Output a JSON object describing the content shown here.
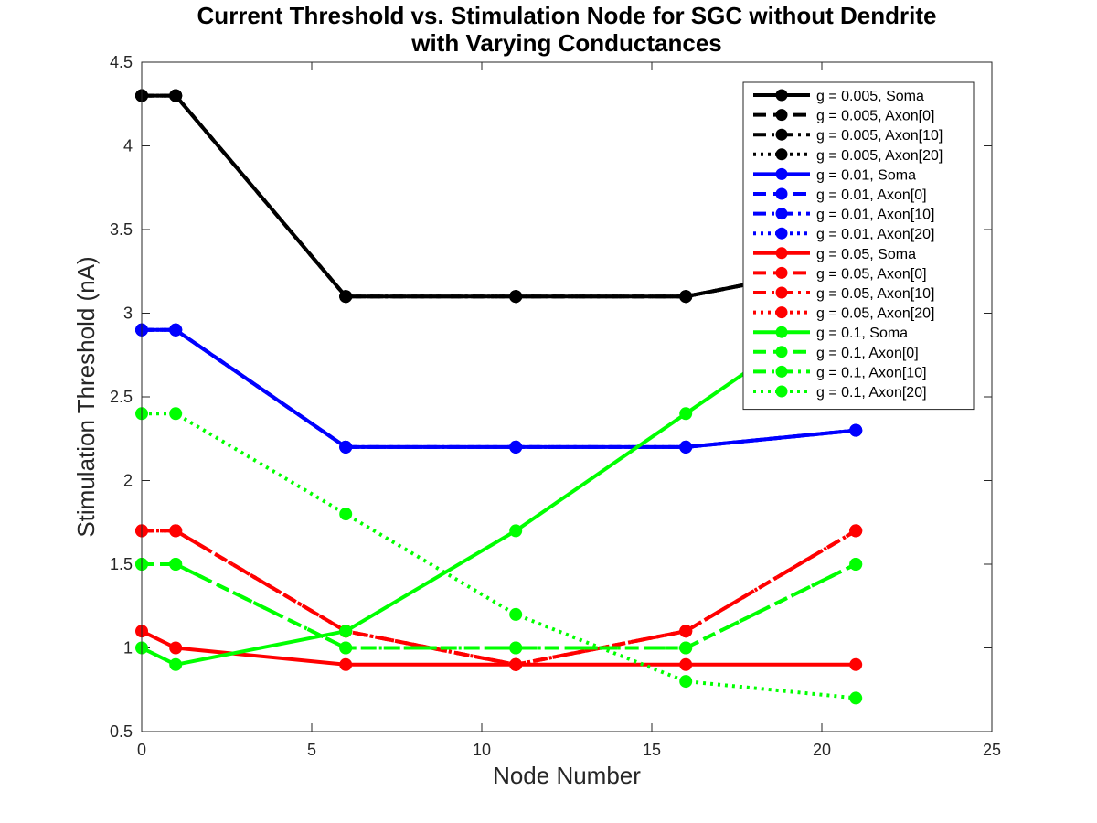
{
  "chart_data": {
    "type": "line",
    "title": [
      "Current Threshold vs. Stimulation Node for SGC without Dendrite",
      "with Varying Conductances"
    ],
    "xlabel": "Node Number",
    "ylabel": "Stimulation Threshold (nA)",
    "xlim": [
      0,
      25
    ],
    "ylim": [
      0.5,
      4.5
    ],
    "xticks": [
      0,
      5,
      10,
      15,
      20,
      25
    ],
    "xtick_labels": [
      "0",
      "5",
      "10",
      "15",
      "20",
      "25"
    ],
    "yticks": [
      0.5,
      1,
      1.5,
      2,
      2.5,
      3,
      3.5,
      4,
      4.5
    ],
    "ytick_labels": [
      "0.5",
      "1",
      "1.5",
      "2",
      "2.5",
      "3",
      "3.5",
      "4",
      "4.5"
    ],
    "grid": false,
    "legend_position": "top-right",
    "x": [
      0,
      1,
      6,
      11,
      16,
      21
    ],
    "series": [
      {
        "name": "g = 0.005, Soma",
        "color": "#000000",
        "style": "solid",
        "values": [
          4.3,
          4.3,
          3.1,
          3.1,
          3.1,
          3.3
        ]
      },
      {
        "name": "g = 0.005, Axon[0]",
        "color": "#000000",
        "style": "dashed",
        "values": [
          4.3,
          4.3,
          3.1,
          3.1,
          3.1,
          3.3
        ]
      },
      {
        "name": "g = 0.005, Axon[10]",
        "color": "#000000",
        "style": "dashdot",
        "values": [
          4.3,
          4.3,
          3.1,
          3.1,
          3.1,
          3.3
        ]
      },
      {
        "name": "g = 0.005, Axon[20]",
        "color": "#000000",
        "style": "dotted",
        "values": [
          4.3,
          4.3,
          3.1,
          3.1,
          3.1,
          3.3
        ]
      },
      {
        "name": "g = 0.01, Soma",
        "color": "#0000ff",
        "style": "solid",
        "values": [
          2.9,
          2.9,
          2.2,
          2.2,
          2.2,
          2.3
        ]
      },
      {
        "name": "g = 0.01, Axon[0]",
        "color": "#0000ff",
        "style": "dashed",
        "values": [
          2.9,
          2.9,
          2.2,
          2.2,
          2.2,
          2.3
        ]
      },
      {
        "name": "g = 0.01, Axon[10]",
        "color": "#0000ff",
        "style": "dashdot",
        "values": [
          2.9,
          2.9,
          2.2,
          2.2,
          2.2,
          2.3
        ]
      },
      {
        "name": "g = 0.01, Axon[20]",
        "color": "#0000ff",
        "style": "dotted",
        "values": [
          2.9,
          2.9,
          2.2,
          2.2,
          2.2,
          2.3
        ]
      },
      {
        "name": "g = 0.05, Soma",
        "color": "#ff0000",
        "style": "solid",
        "values": [
          1.1,
          1.0,
          0.9,
          0.9,
          0.9,
          0.9
        ]
      },
      {
        "name": "g = 0.05, Axon[0]",
        "color": "#ff0000",
        "style": "dashed",
        "values": [
          1.7,
          1.7,
          1.1,
          0.9,
          1.1,
          1.7
        ]
      },
      {
        "name": "g = 0.05, Axon[10]",
        "color": "#ff0000",
        "style": "dashdot",
        "values": [
          1.7,
          1.7,
          1.1,
          0.9,
          1.1,
          1.7
        ]
      },
      {
        "name": "g = 0.05, Axon[20]",
        "color": "#ff0000",
        "style": "dotted",
        "values": [
          1.7,
          1.7,
          1.1,
          0.9,
          1.1,
          1.7
        ]
      },
      {
        "name": "g = 0.1, Soma",
        "color": "#00ff00",
        "style": "solid",
        "values": [
          1.0,
          0.9,
          1.1,
          1.7,
          2.4,
          3.1
        ]
      },
      {
        "name": "g = 0.1, Axon[0]",
        "color": "#00ff00",
        "style": "dashed",
        "values": [
          1.5,
          1.5,
          1.0,
          1.0,
          1.0,
          1.5
        ]
      },
      {
        "name": "g = 0.1, Axon[10]",
        "color": "#00ff00",
        "style": "dashdot",
        "values": [
          1.5,
          1.5,
          1.0,
          1.0,
          1.0,
          1.5
        ]
      },
      {
        "name": "g = 0.1, Axon[20]",
        "color": "#00ff00",
        "style": "dotted",
        "values": [
          2.4,
          2.4,
          1.8,
          1.2,
          0.8,
          0.7
        ]
      }
    ]
  }
}
